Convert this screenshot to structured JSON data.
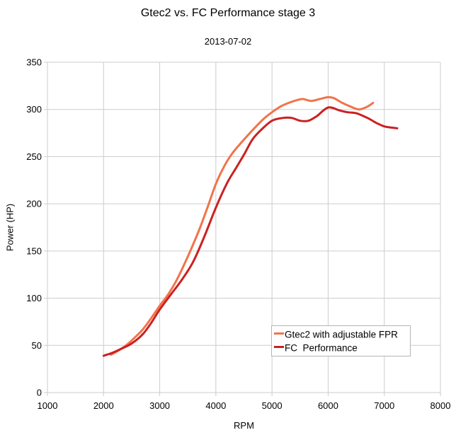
{
  "title": "Gtec2 vs. FC Performance stage 3",
  "subtitle": "2013-07-02",
  "chart_data": {
    "type": "line",
    "title": "Gtec2 vs. FC Performance stage 3",
    "subtitle": "2013-07-02",
    "xlabel": "RPM",
    "ylabel": "Power (HP)",
    "xlim": [
      1000,
      8000
    ],
    "ylim": [
      0,
      350
    ],
    "x_ticks": [
      1000,
      2000,
      3000,
      4000,
      5000,
      6000,
      7000,
      8000
    ],
    "y_ticks": [
      0,
      50,
      100,
      150,
      200,
      250,
      300,
      350
    ],
    "grid": true,
    "legend_position": "inside-bottom-right",
    "series": [
      {
        "name": "Gtec2 with adjustable FPR",
        "color": "#F2734A",
        "points": [
          [
            2130,
            40
          ],
          [
            2250,
            44
          ],
          [
            2400,
            50
          ],
          [
            2550,
            58
          ],
          [
            2700,
            67
          ],
          [
            2850,
            79
          ],
          [
            3000,
            92
          ],
          [
            3150,
            104
          ],
          [
            3300,
            119
          ],
          [
            3500,
            144
          ],
          [
            3700,
            172
          ],
          [
            3850,
            196
          ],
          [
            4000,
            221
          ],
          [
            4150,
            240
          ],
          [
            4300,
            254
          ],
          [
            4500,
            268
          ],
          [
            4700,
            281
          ],
          [
            4850,
            290
          ],
          [
            5000,
            297
          ],
          [
            5150,
            303
          ],
          [
            5300,
            307
          ],
          [
            5450,
            310
          ],
          [
            5550,
            311
          ],
          [
            5700,
            309
          ],
          [
            5850,
            311
          ],
          [
            6000,
            313
          ],
          [
            6100,
            312
          ],
          [
            6250,
            307
          ],
          [
            6400,
            303
          ],
          [
            6550,
            300
          ],
          [
            6700,
            303
          ],
          [
            6800,
            307
          ]
        ]
      },
      {
        "name": "FC  Performance",
        "color": "#CC2020",
        "points": [
          [
            2000,
            39
          ],
          [
            2150,
            42
          ],
          [
            2300,
            46
          ],
          [
            2500,
            52
          ],
          [
            2700,
            62
          ],
          [
            2850,
            74
          ],
          [
            3000,
            88
          ],
          [
            3200,
            104
          ],
          [
            3400,
            120
          ],
          [
            3600,
            139
          ],
          [
            3800,
            166
          ],
          [
            4000,
            196
          ],
          [
            4200,
            222
          ],
          [
            4350,
            237
          ],
          [
            4500,
            252
          ],
          [
            4650,
            268
          ],
          [
            4800,
            278
          ],
          [
            5000,
            288
          ],
          [
            5200,
            291
          ],
          [
            5350,
            291
          ],
          [
            5500,
            288
          ],
          [
            5650,
            288
          ],
          [
            5800,
            293
          ],
          [
            6000,
            302
          ],
          [
            6200,
            299
          ],
          [
            6350,
            297
          ],
          [
            6500,
            296
          ],
          [
            6700,
            291
          ],
          [
            6850,
            286
          ],
          [
            7000,
            282
          ],
          [
            7100,
            281
          ],
          [
            7230,
            280
          ]
        ]
      }
    ]
  },
  "colors": {
    "grid": "#CCCCCC",
    "text": "#000000",
    "legend_border": "#B5B5B5"
  }
}
